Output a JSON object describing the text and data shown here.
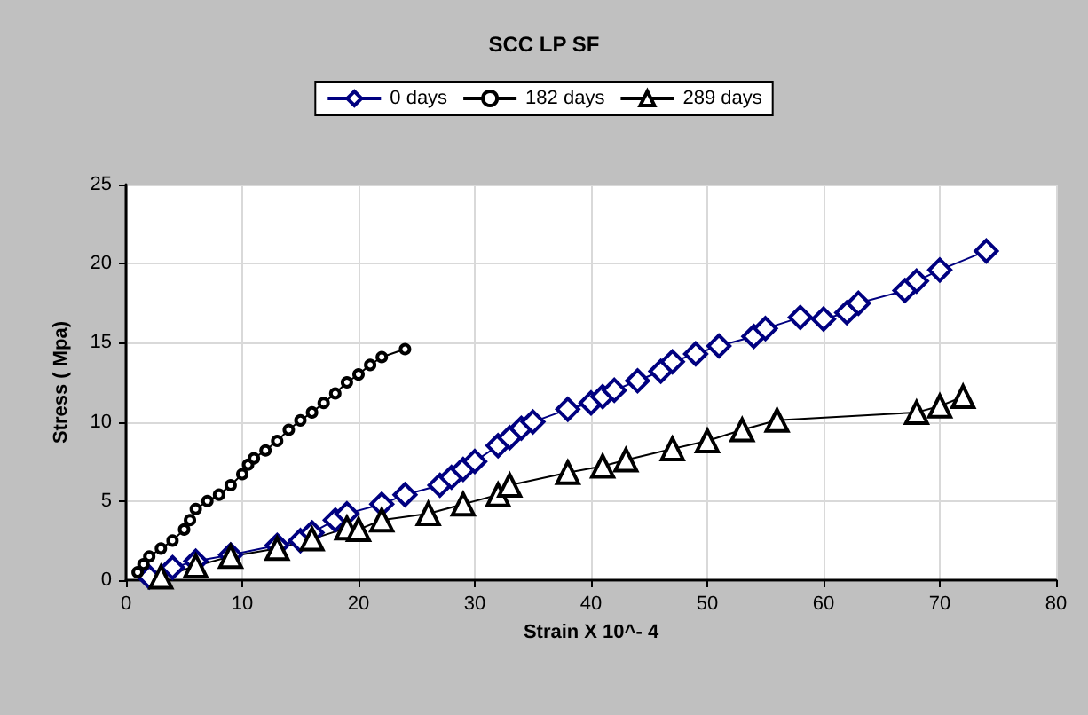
{
  "chart_data": {
    "type": "line",
    "title": "SCC LP SF",
    "xlabel": "Strain X 10^- 4",
    "ylabel": "Stress ( Mpa)",
    "xlim": [
      0,
      80
    ],
    "xticks": [
      0,
      10,
      20,
      30,
      40,
      50,
      60,
      70,
      80
    ],
    "ylim": [
      0,
      25
    ],
    "yticks": [
      0,
      5,
      10,
      15,
      20,
      25
    ],
    "grid": true,
    "legend": "top",
    "series": [
      {
        "name": "0 days",
        "color": "#000080",
        "marker": "diamond",
        "x": [
          2,
          4,
          6,
          9,
          13,
          15,
          16,
          18,
          19,
          22,
          24,
          27,
          28,
          29,
          30,
          32,
          33,
          34,
          35,
          38,
          40,
          41,
          42,
          44,
          46,
          47,
          49,
          51,
          54,
          55,
          58,
          60,
          62,
          63,
          67,
          68,
          70,
          74
        ],
        "values": [
          0.2,
          0.8,
          1.2,
          1.6,
          2.2,
          2.5,
          3,
          3.8,
          4.2,
          4.8,
          5.4,
          6,
          6.5,
          7,
          7.5,
          8.5,
          9,
          9.6,
          10,
          10.8,
          11.2,
          11.6,
          12,
          12.6,
          13.2,
          13.8,
          14.3,
          14.8,
          15.4,
          15.9,
          16.6,
          16.5,
          16.9,
          17.5,
          18.3,
          18.9,
          19.6,
          20.8
        ]
      },
      {
        "name": "182 days",
        "color": "#000000",
        "marker": "circle",
        "x": [
          1,
          1.5,
          2,
          3,
          4,
          5,
          5.5,
          6,
          7,
          8,
          9,
          10,
          10.5,
          11,
          12,
          13,
          14,
          15,
          16,
          17,
          18,
          19,
          20,
          21,
          22,
          24
        ],
        "values": [
          0.5,
          1,
          1.5,
          2,
          2.5,
          3.2,
          3.8,
          4.5,
          5,
          5.4,
          6,
          6.7,
          7.3,
          7.7,
          8.2,
          8.8,
          9.5,
          10.1,
          10.6,
          11.2,
          11.8,
          12.5,
          13,
          13.6,
          14.1,
          14.6
        ]
      },
      {
        "name": "289 days",
        "color": "#000000",
        "marker": "triangle",
        "x": [
          3,
          6,
          9,
          13,
          16,
          19,
          20,
          22,
          26,
          29,
          32,
          33,
          38,
          41,
          43,
          47,
          50,
          53,
          56,
          68,
          70,
          72
        ],
        "values": [
          0.2,
          0.9,
          1.5,
          2,
          2.6,
          3.3,
          3.2,
          3.8,
          4.2,
          4.8,
          5.4,
          6,
          6.8,
          7.2,
          7.6,
          8.3,
          8.8,
          9.5,
          10.1,
          10.6,
          11,
          11.6
        ]
      }
    ]
  }
}
